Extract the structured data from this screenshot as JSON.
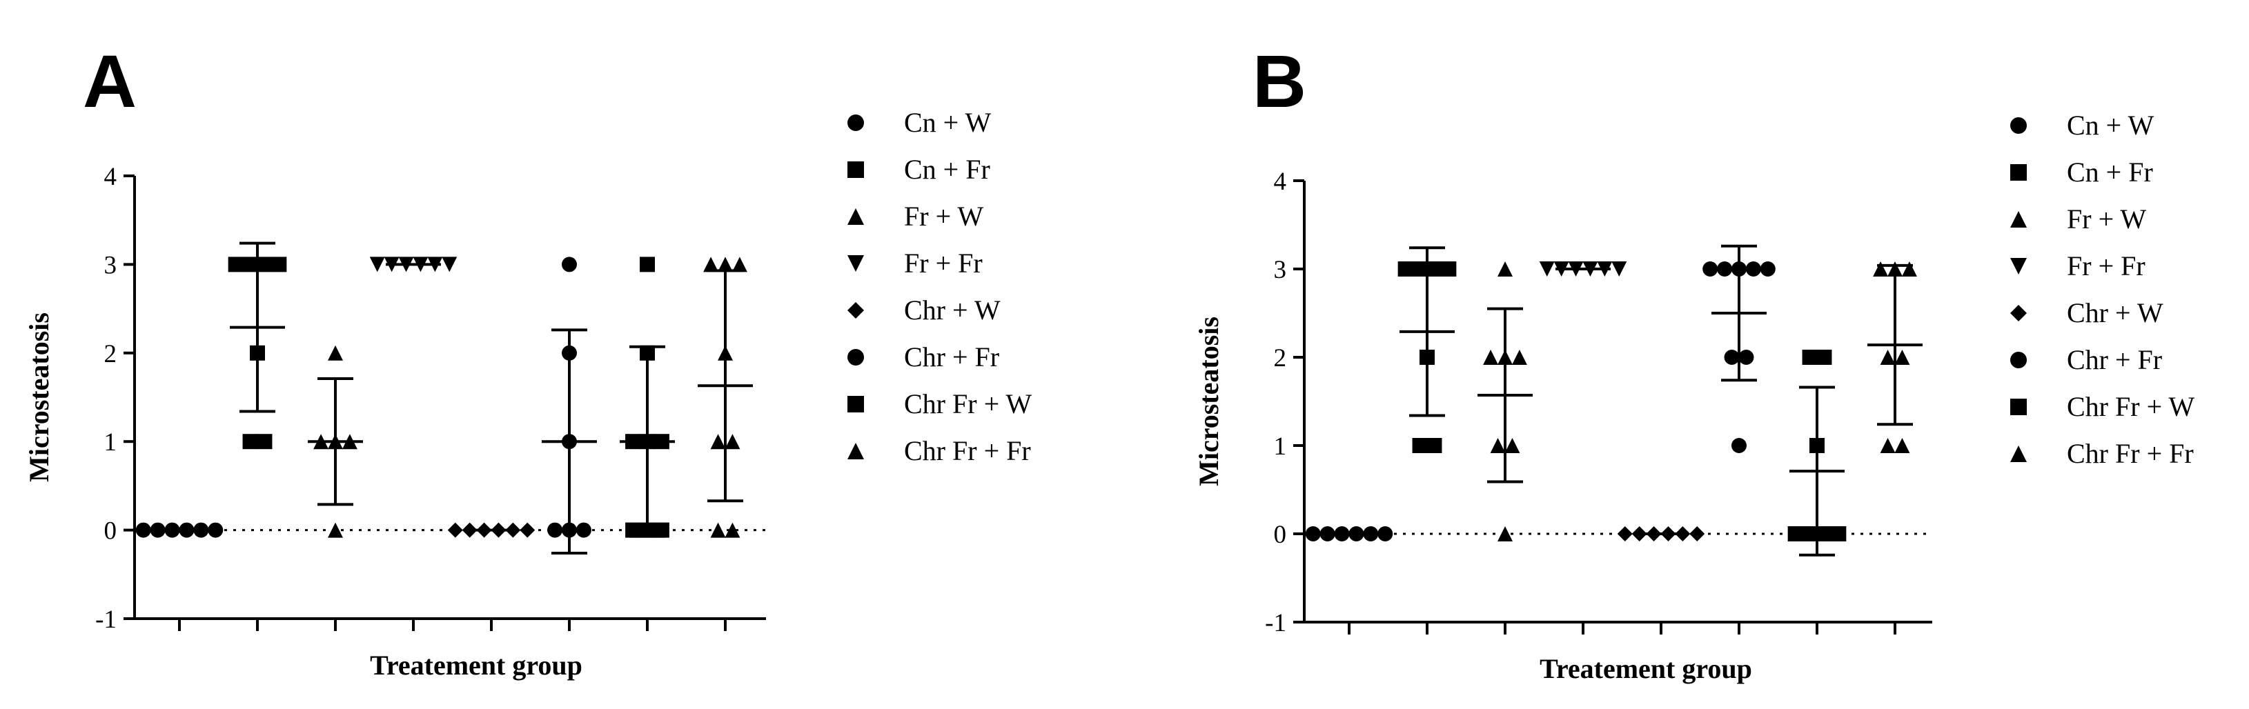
{
  "chart_data": [
    {
      "type": "scatter",
      "panel": "A",
      "ylabel": "Microsteatosis",
      "xlabel": "Treatement group",
      "ylim": [
        -1,
        4
      ],
      "yticks": [
        "-1",
        "0",
        "1",
        "2",
        "3",
        "4"
      ],
      "reference_line": 0,
      "legend_position": "right",
      "groups": [
        {
          "name": "Cn + W",
          "marker": "circle",
          "values": [
            0,
            0,
            0,
            0,
            0,
            0
          ],
          "mean": 0,
          "sd": 0
        },
        {
          "name": "Cn + Fr",
          "marker": "square",
          "values": [
            1,
            1,
            2,
            3,
            3,
            3,
            3
          ],
          "mean": 2.29,
          "sd": 0.95
        },
        {
          "name": "Fr + W",
          "marker": "triangle",
          "values": [
            0,
            1,
            1,
            1,
            2
          ],
          "mean": 1.0,
          "sd": 0.71
        },
        {
          "name": "Fr + Fr",
          "marker": "triangle-down",
          "values": [
            3,
            3,
            3,
            3,
            3,
            3
          ],
          "mean": 3.0,
          "sd": 0
        },
        {
          "name": "Chr + W",
          "marker": "diamond",
          "values": [
            0,
            0,
            0,
            0,
            0,
            0
          ],
          "mean": 0,
          "sd": 0
        },
        {
          "name": "Chr + Fr",
          "marker": "circle",
          "values": [
            0,
            0,
            0,
            1,
            2,
            3
          ],
          "mean": 1.0,
          "sd": 1.26
        },
        {
          "name": "Chr Fr + W",
          "marker": "square",
          "values": [
            0,
            0,
            0,
            1,
            1,
            1,
            2,
            3
          ],
          "mean": 1.0,
          "sd": 1.07
        },
        {
          "name": "Chr Fr + Fr",
          "marker": "triangle",
          "values": [
            0,
            0,
            1,
            1,
            2,
            3,
            3,
            3
          ],
          "mean": 1.63,
          "sd": 1.3
        }
      ]
    },
    {
      "type": "scatter",
      "panel": "B",
      "ylabel": "Microsteatosis",
      "xlabel": "Treatement group",
      "ylim": [
        -1,
        4
      ],
      "yticks": [
        "-1",
        "0",
        "1",
        "2",
        "3",
        "4"
      ],
      "reference_line": 0,
      "legend_position": "right",
      "groups": [
        {
          "name": "Cn + W",
          "marker": "circle",
          "values": [
            0,
            0,
            0,
            0,
            0,
            0
          ],
          "mean": 0,
          "sd": 0
        },
        {
          "name": "Cn + Fr",
          "marker": "square",
          "values": [
            1,
            1,
            2,
            3,
            3,
            3,
            3
          ],
          "mean": 2.29,
          "sd": 0.95
        },
        {
          "name": "Fr + W",
          "marker": "triangle",
          "values": [
            0,
            1,
            1,
            2,
            2,
            2,
            3
          ],
          "mean": 1.57,
          "sd": 0.98
        },
        {
          "name": "Fr + Fr",
          "marker": "triangle-down",
          "values": [
            3,
            3,
            3,
            3,
            3,
            3
          ],
          "mean": 3.0,
          "sd": 0
        },
        {
          "name": "Chr + W",
          "marker": "diamond",
          "values": [
            0,
            0,
            0,
            0,
            0,
            0
          ],
          "mean": 0,
          "sd": 0
        },
        {
          "name": "Chr + Fr",
          "marker": "circle",
          "values": [
            1,
            2,
            2,
            3,
            3,
            3,
            3,
            3
          ],
          "mean": 2.5,
          "sd": 0.76
        },
        {
          "name": "Chr Fr + W",
          "marker": "square",
          "values": [
            0,
            0,
            0,
            0,
            1,
            2,
            2
          ],
          "mean": 0.71,
          "sd": 0.95
        },
        {
          "name": "Chr Fr + Fr",
          "marker": "triangle",
          "values": [
            1,
            1,
            2,
            2,
            3,
            3,
            3
          ],
          "mean": 2.14,
          "sd": 0.9
        }
      ]
    }
  ]
}
